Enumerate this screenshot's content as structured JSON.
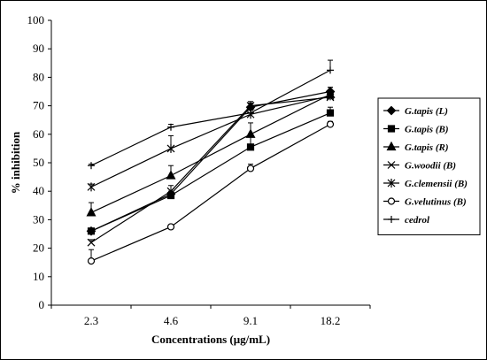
{
  "chart_data": {
    "type": "line",
    "categories": [
      "2.3",
      "4.6",
      "9.1",
      "18.2"
    ],
    "ylim": [
      0,
      100
    ],
    "yticks": [
      0,
      10,
      20,
      30,
      40,
      50,
      60,
      70,
      80,
      90,
      100
    ],
    "xlabel": "Concentrations (μg/mL)",
    "ylabel": "% inhibition",
    "grid": false,
    "legend_position": "right",
    "series": [
      {
        "name": "G.tapis (L)",
        "marker": "diamond",
        "values": [
          26,
          39,
          69.5,
          75
        ],
        "errors": [
          1,
          1,
          1.5,
          1.5
        ]
      },
      {
        "name": "G.tapis (B)",
        "marker": "square",
        "values": [
          26,
          38.5,
          55.5,
          67.5
        ],
        "errors": [
          1,
          1.5,
          4.5,
          2
        ]
      },
      {
        "name": "G.tapis (R)",
        "marker": "triangle",
        "values": [
          32.5,
          45.5,
          60,
          74
        ],
        "errors": [
          3.5,
          3.5,
          4,
          2.5
        ]
      },
      {
        "name": "G.woodii (B)",
        "marker": "x",
        "values": [
          22,
          40,
          70,
          73
        ],
        "errors": [
          1,
          2,
          1.5,
          1.5
        ]
      },
      {
        "name": "G.clemensii (B)",
        "marker": "star",
        "values": [
          41.5,
          55,
          67,
          73.5
        ],
        "errors": [
          1,
          4.5,
          1.5,
          1.5
        ]
      },
      {
        "name": "G.velutinus (B)",
        "marker": "circle",
        "values": [
          15.5,
          27.5,
          48,
          63.5
        ],
        "errors": [
          4,
          0.5,
          1.5,
          1
        ]
      },
      {
        "name": "cedrol",
        "marker": "plus",
        "values": [
          49,
          62.5,
          67.5,
          82.5
        ],
        "errors": [
          0.5,
          1,
          1,
          3.5
        ]
      }
    ]
  }
}
